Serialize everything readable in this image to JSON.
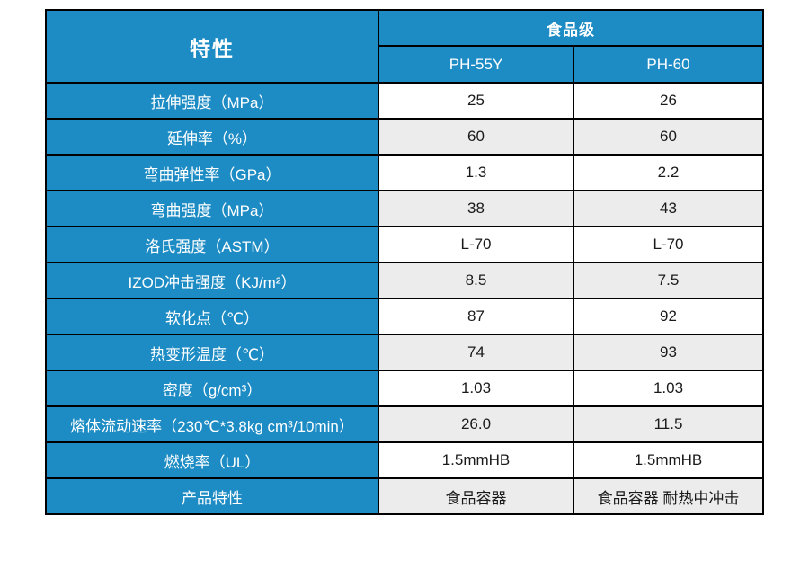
{
  "colors": {
    "header_blue": "#1E8CC4",
    "row_alt_gray": "#ECECEC",
    "border": "#000000",
    "header_text": "#FFFFFF",
    "value_text": "#1A1A1A"
  },
  "header": {
    "feature_label": "特性",
    "group_label": "食品级",
    "columns": [
      "PH-55Y",
      "PH-60"
    ]
  },
  "rows": [
    {
      "label": "拉伸强度（MPa）",
      "ph55y": "25",
      "ph60": "26"
    },
    {
      "label": "延伸率（%）",
      "ph55y": "60",
      "ph60": "60"
    },
    {
      "label": "弯曲弹性率（GPa）",
      "ph55y": "1.3",
      "ph60": "2.2"
    },
    {
      "label": "弯曲强度（MPa）",
      "ph55y": "38",
      "ph60": "43"
    },
    {
      "label": "洛氏强度（ASTM）",
      "ph55y": "L-70",
      "ph60": "L-70"
    },
    {
      "label": "IZOD冲击强度（KJ/m²）",
      "ph55y": "8.5",
      "ph60": "7.5"
    },
    {
      "label": "软化点（℃）",
      "ph55y": "87",
      "ph60": "92"
    },
    {
      "label": "热变形温度（℃）",
      "ph55y": "74",
      "ph60": "93"
    },
    {
      "label": "密度（g/cm³）",
      "ph55y": "1.03",
      "ph60": "1.03"
    },
    {
      "label": "熔体流动速率（230℃*3.8kg cm³/10min）",
      "ph55y": "26.0",
      "ph60": "11.5"
    },
    {
      "label": "燃烧率（UL）",
      "ph55y": "1.5mmHB",
      "ph60": "1.5mmHB"
    },
    {
      "label": "产品特性",
      "ph55y": "食品容器",
      "ph60": "食品容器 耐热中冲击"
    }
  ]
}
